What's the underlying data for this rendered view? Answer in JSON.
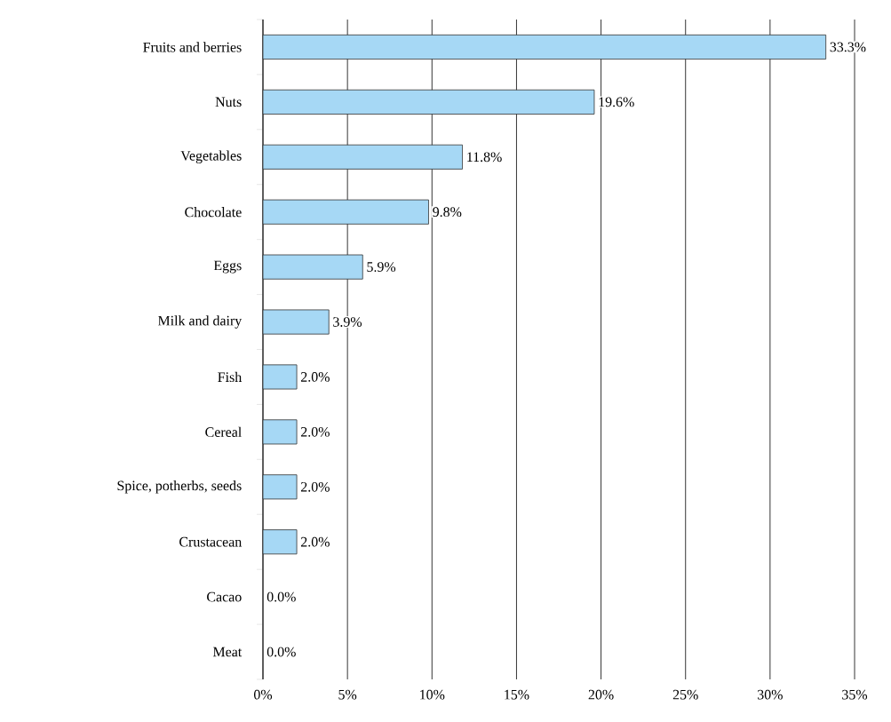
{
  "chart_data": {
    "type": "bar",
    "orientation": "horizontal",
    "categories": [
      "Fruits and berries",
      "Nuts",
      "Vegetables",
      "Chocolate",
      "Eggs",
      "Milk and dairy",
      "Fish",
      "Cereal",
      "Spice, potherbs, seeds",
      "Crustacean",
      "Cacao",
      "Meat"
    ],
    "values": [
      33.3,
      19.6,
      11.8,
      9.8,
      5.9,
      3.9,
      2.0,
      2.0,
      2.0,
      2.0,
      0.0,
      0.0
    ],
    "value_labels": [
      "33.3%",
      "19.6%",
      "11.8%",
      "9.8%",
      "5.9%",
      "3.9%",
      "2.0%",
      "2.0%",
      "2.0%",
      "2.0%",
      "0.0%",
      "0.0%"
    ],
    "color": "#a6d8f5",
    "xlim": [
      0,
      35
    ],
    "xticks": [
      {
        "value": 0,
        "label": "0%"
      },
      {
        "value": 5,
        "label": "5%"
      },
      {
        "value": 10,
        "label": "10%"
      },
      {
        "value": 15,
        "label": "15%"
      },
      {
        "value": 20,
        "label": "20%"
      },
      {
        "value": 25,
        "label": "25%"
      },
      {
        "value": 30,
        "label": "30%"
      },
      {
        "value": 35,
        "label": "35%"
      }
    ],
    "grid": "x"
  }
}
